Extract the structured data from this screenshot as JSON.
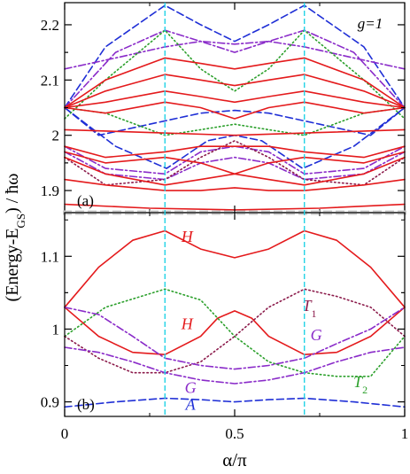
{
  "chart_data": {
    "type": "line",
    "ylabel_main": "(Energy-E",
    "ylabel_sub": "GS",
    "ylabel_end": ") / ħω",
    "xlabel": "α/π",
    "annotation_g": "g=1",
    "colors": {
      "red": "#e41a1c",
      "green": "#2ca02c",
      "blue": "#1f2fd6",
      "purple": "#8a2bc9",
      "maroon": "#8b1a4a",
      "cyan": "#22d3e6",
      "divider": "#c8c8c8",
      "axis": "#000000"
    },
    "vlines_x": [
      0.295,
      0.705
    ],
    "panels": [
      {
        "id": "a",
        "label": "(a)",
        "ylim": [
          1.86,
          2.24
        ],
        "yticks": [
          1.9,
          2.0,
          2.1,
          2.2
        ],
        "yticklabels": [
          "1.9",
          "2",
          "2.1",
          "2.2"
        ],
        "xticks": [
          0,
          0.5,
          1
        ],
        "series": [
          {
            "style": "blue-dash",
            "x": [
              0,
              0.12,
              0.295,
              0.4,
              0.5,
              0.6,
              0.705,
              0.88,
              1
            ],
            "y": [
              2.05,
              2.16,
              2.235,
              2.2,
              2.17,
              2.2,
              2.235,
              2.16,
              2.05
            ]
          },
          {
            "style": "blue-dash",
            "x": [
              0,
              0.15,
              0.3,
              0.42,
              0.5,
              0.58,
              0.7,
              0.85,
              1
            ],
            "y": [
              2.05,
              1.98,
              1.94,
              1.99,
              2.0,
              1.99,
              1.94,
              1.98,
              2.05
            ]
          },
          {
            "style": "blue-dash",
            "x": [
              0,
              0.1,
              0.25,
              0.4,
              0.5,
              0.6,
              0.75,
              0.9,
              1
            ],
            "y": [
              2.05,
              2.0,
              2.02,
              2.04,
              2.045,
              2.04,
              2.02,
              2.0,
              2.05
            ]
          },
          {
            "style": "purple-dashdot",
            "x": [
              0,
              0.15,
              0.295,
              0.4,
              0.5,
              0.6,
              0.705,
              0.85,
              1
            ],
            "y": [
              2.05,
              2.15,
              2.19,
              2.17,
              2.15,
              2.17,
              2.19,
              2.15,
              2.05
            ]
          },
          {
            "style": "purple-dashdot",
            "x": [
              0,
              0.15,
              0.295,
              0.4,
              0.5,
              0.6,
              0.705,
              0.85,
              1
            ],
            "y": [
              2.12,
              2.14,
              2.16,
              2.17,
              2.165,
              2.17,
              2.16,
              2.14,
              2.12
            ]
          },
          {
            "style": "purple-dashdot",
            "x": [
              0,
              0.12,
              0.295,
              0.4,
              0.5,
              0.6,
              0.705,
              0.88,
              1
            ],
            "y": [
              1.98,
              1.94,
              1.93,
              1.97,
              1.98,
              1.97,
              1.93,
              1.94,
              1.98
            ]
          },
          {
            "style": "purple-dashdot",
            "x": [
              0,
              0.12,
              0.295,
              0.4,
              0.5,
              0.6,
              0.705,
              0.88,
              1
            ],
            "y": [
              1.97,
              1.93,
              1.92,
              1.95,
              1.96,
              1.95,
              1.92,
              1.93,
              1.97
            ]
          },
          {
            "style": "green-dot",
            "x": [
              0,
              0.12,
              0.295,
              0.4,
              0.5,
              0.6,
              0.705,
              0.88,
              1
            ],
            "y": [
              2.03,
              2.1,
              2.19,
              2.12,
              2.08,
              2.12,
              2.19,
              2.1,
              2.03
            ]
          },
          {
            "style": "green-dot",
            "x": [
              0,
              0.12,
              0.295,
              0.4,
              0.5,
              0.6,
              0.705,
              0.88,
              1
            ],
            "y": [
              2.05,
              2.04,
              2.0,
              2.01,
              2.02,
              2.01,
              2.0,
              2.04,
              2.05
            ]
          },
          {
            "style": "maroon-dot",
            "x": [
              0,
              0.12,
              0.295,
              0.4,
              0.5,
              0.6,
              0.705,
              0.88,
              1
            ],
            "y": [
              1.96,
              1.91,
              1.92,
              1.96,
              1.99,
              1.96,
              1.92,
              1.91,
              1.96
            ]
          },
          {
            "style": "red-solid",
            "x": [
              0,
              0.12,
              0.295,
              0.4,
              0.5,
              0.6,
              0.705,
              0.88,
              1
            ],
            "y": [
              2.05,
              2.1,
              2.14,
              2.13,
              2.12,
              2.13,
              2.14,
              2.1,
              2.05
            ]
          },
          {
            "style": "red-solid",
            "x": [
              0,
              0.12,
              0.295,
              0.4,
              0.5,
              0.6,
              0.705,
              0.88,
              1
            ],
            "y": [
              2.05,
              2.08,
              2.11,
              2.1,
              2.09,
              2.1,
              2.11,
              2.08,
              2.05
            ]
          },
          {
            "style": "red-solid",
            "x": [
              0,
              0.12,
              0.295,
              0.4,
              0.5,
              0.6,
              0.705,
              0.88,
              1
            ],
            "y": [
              2.05,
              2.06,
              2.08,
              2.07,
              2.06,
              2.07,
              2.08,
              2.06,
              2.05
            ]
          },
          {
            "style": "red-solid",
            "x": [
              0,
              0.12,
              0.295,
              0.4,
              0.5,
              0.6,
              0.705,
              0.88,
              1
            ],
            "y": [
              2.05,
              2.04,
              2.06,
              2.05,
              2.03,
              2.05,
              2.06,
              2.04,
              2.05
            ]
          },
          {
            "style": "red-solid",
            "x": [
              0,
              0.25,
              0.5,
              0.75,
              1
            ],
            "y": [
              2.01,
              2.005,
              2.0,
              2.005,
              2.01
            ]
          },
          {
            "style": "red-solid",
            "x": [
              0,
              0.12,
              0.295,
              0.4,
              0.5,
              0.6,
              0.705,
              0.88,
              1
            ],
            "y": [
              1.98,
              1.96,
              1.97,
              1.98,
              1.98,
              1.98,
              1.97,
              1.96,
              1.98
            ]
          },
          {
            "style": "red-solid",
            "x": [
              0,
              0.12,
              0.295,
              0.4,
              0.5,
              0.6,
              0.705,
              0.88,
              1
            ],
            "y": [
              1.97,
              1.95,
              1.96,
              1.95,
              1.93,
              1.95,
              1.96,
              1.95,
              1.97
            ]
          },
          {
            "style": "red-solid",
            "x": [
              0,
              0.12,
              0.295,
              0.4,
              0.5,
              0.6,
              0.705,
              0.88,
              1
            ],
            "y": [
              1.96,
              1.93,
              1.91,
              1.92,
              1.93,
              1.92,
              1.91,
              1.93,
              1.96
            ]
          },
          {
            "style": "red-solid",
            "x": [
              0,
              0.12,
              0.295,
              0.4,
              0.5,
              0.6,
              0.705,
              0.88,
              1
            ],
            "y": [
              1.92,
              1.91,
              1.9,
              1.9,
              1.905,
              1.9,
              1.9,
              1.91,
              1.92
            ]
          },
          {
            "style": "red-solid",
            "x": [
              0,
              0.25,
              0.5,
              0.75,
              1
            ],
            "y": [
              1.875,
              1.868,
              1.865,
              1.868,
              1.875
            ]
          }
        ]
      },
      {
        "id": "b",
        "label": "(b)",
        "ylim": [
          0.88,
          1.16
        ],
        "yticks": [
          0.9,
          1.0,
          1.1
        ],
        "yticklabels": [
          "0.9",
          "1",
          "1.1"
        ],
        "xticks": [
          0,
          0.5,
          1
        ],
        "xticklabels": [
          "0",
          "0.5",
          "1"
        ],
        "series": [
          {
            "style": "red-solid",
            "x": [
              0,
              0.1,
              0.2,
              0.295,
              0.4,
              0.5,
              0.6,
              0.705,
              0.8,
              0.9,
              1
            ],
            "y": [
              1.03,
              1.085,
              1.122,
              1.135,
              1.11,
              1.098,
              1.11,
              1.135,
              1.122,
              1.085,
              1.03
            ]
          },
          {
            "style": "red-solid",
            "x": [
              0,
              0.1,
              0.2,
              0.295,
              0.4,
              0.45,
              0.5,
              0.55,
              0.6,
              0.705,
              0.8,
              0.9,
              1
            ],
            "y": [
              1.03,
              0.99,
              0.968,
              0.965,
              0.99,
              1.015,
              1.025,
              1.015,
              0.99,
              0.965,
              0.968,
              0.99,
              1.03
            ]
          },
          {
            "style": "green-dot",
            "x": [
              0,
              0.12,
              0.295,
              0.4,
              0.5,
              0.6,
              0.705,
              0.8,
              0.9,
              1
            ],
            "y": [
              0.99,
              1.03,
              1.055,
              1.04,
              0.99,
              0.955,
              0.94,
              0.935,
              0.935,
              0.99
            ]
          },
          {
            "style": "maroon-dot",
            "x": [
              0,
              0.1,
              0.2,
              0.295,
              0.4,
              0.5,
              0.6,
              0.705,
              0.8,
              0.9,
              1
            ],
            "y": [
              0.99,
              0.96,
              0.94,
              0.94,
              0.955,
              0.99,
              1.03,
              1.055,
              1.045,
              1.03,
              0.99
            ]
          },
          {
            "style": "purple-dashdot",
            "x": [
              0,
              0.1,
              0.2,
              0.295,
              0.4,
              0.5,
              0.6,
              0.705,
              0.8,
              0.9,
              1
            ],
            "y": [
              1.03,
              1.02,
              0.99,
              0.96,
              0.95,
              0.945,
              0.95,
              0.96,
              0.98,
              1.0,
              1.03
            ]
          },
          {
            "style": "purple-dashdot",
            "x": [
              0,
              0.1,
              0.2,
              0.295,
              0.4,
              0.5,
              0.6,
              0.705,
              0.8,
              0.9,
              1
            ],
            "y": [
              0.975,
              0.968,
              0.955,
              0.94,
              0.93,
              0.925,
              0.93,
              0.94,
              0.955,
              0.968,
              0.975
            ]
          },
          {
            "style": "blue-dash",
            "x": [
              0,
              0.15,
              0.295,
              0.4,
              0.5,
              0.6,
              0.705,
              0.85,
              1
            ],
            "y": [
              0.893,
              0.9,
              0.905,
              0.903,
              0.9,
              0.903,
              0.905,
              0.9,
              0.893
            ]
          }
        ],
        "annotations": [
          {
            "text": "H",
            "sub": "",
            "x": 0.36,
            "y": 1.12,
            "color": "red"
          },
          {
            "text": "H",
            "sub": "",
            "x": 0.36,
            "y": 1.0,
            "color": "red"
          },
          {
            "text": "T",
            "sub": "1",
            "x": 0.72,
            "y": 1.025,
            "color": "maroon"
          },
          {
            "text": "G",
            "sub": "",
            "x": 0.74,
            "y": 0.985,
            "color": "purple"
          },
          {
            "text": "G",
            "sub": "",
            "x": 0.37,
            "y": 0.912,
            "color": "purple"
          },
          {
            "text": "T",
            "sub": "2",
            "x": 0.87,
            "y": 0.92,
            "color": "green"
          },
          {
            "text": "A",
            "sub": "",
            "x": 0.37,
            "y": 0.889,
            "color": "blue"
          }
        ]
      }
    ]
  }
}
